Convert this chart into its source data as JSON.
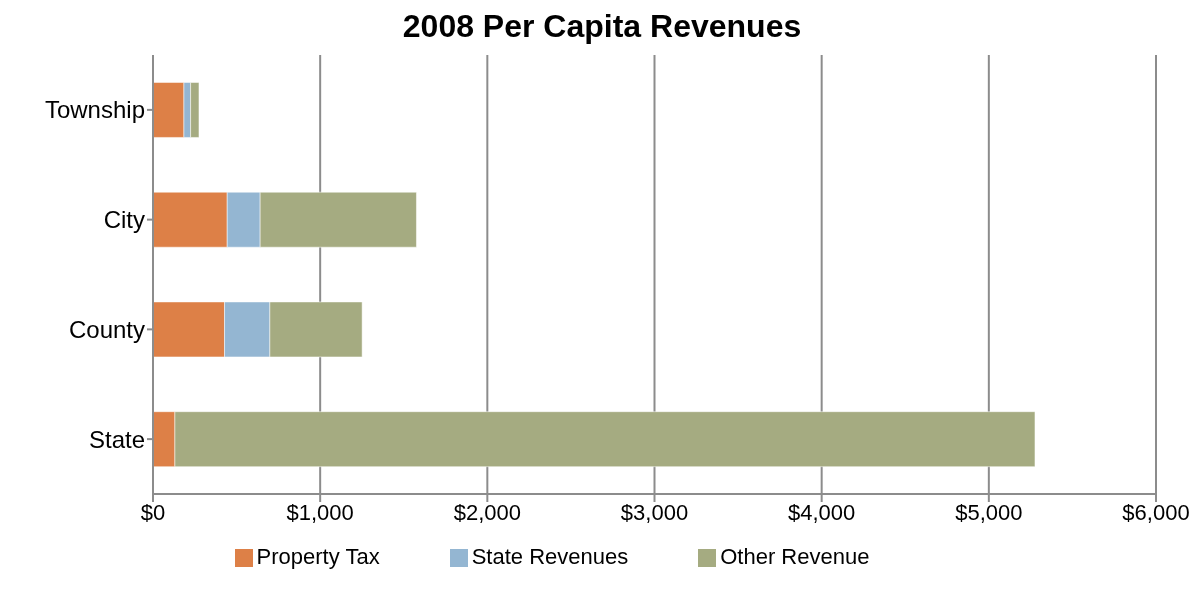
{
  "chart_data": {
    "type": "bar",
    "orientation": "horizontal",
    "stacked": true,
    "title": "2008 Per Capita Revenues",
    "categories": [
      "Township",
      "City",
      "County",
      "State"
    ],
    "series": [
      {
        "name": "Property Tax",
        "color": "#dd8047",
        "values": [
          185,
          444,
          428,
          131
        ]
      },
      {
        "name": "State Revenues",
        "color": "#94b6d2",
        "values": [
          40,
          197,
          271,
          0
        ]
      },
      {
        "name": "Other Revenue",
        "color": "#a5ab81",
        "values": [
          50,
          935,
          552,
          5145
        ]
      }
    ],
    "xlim": [
      0,
      6000
    ],
    "xticks": [
      {
        "value": 0,
        "label": "$0"
      },
      {
        "value": 1000,
        "label": "$1,000"
      },
      {
        "value": 2000,
        "label": "$2,000"
      },
      {
        "value": 3000,
        "label": "$3,000"
      },
      {
        "value": 4000,
        "label": "$4,000"
      },
      {
        "value": 5000,
        "label": "$5,000"
      },
      {
        "value": 6000,
        "label": "$6,000"
      }
    ],
    "grid": "x",
    "legend": "bottom"
  }
}
